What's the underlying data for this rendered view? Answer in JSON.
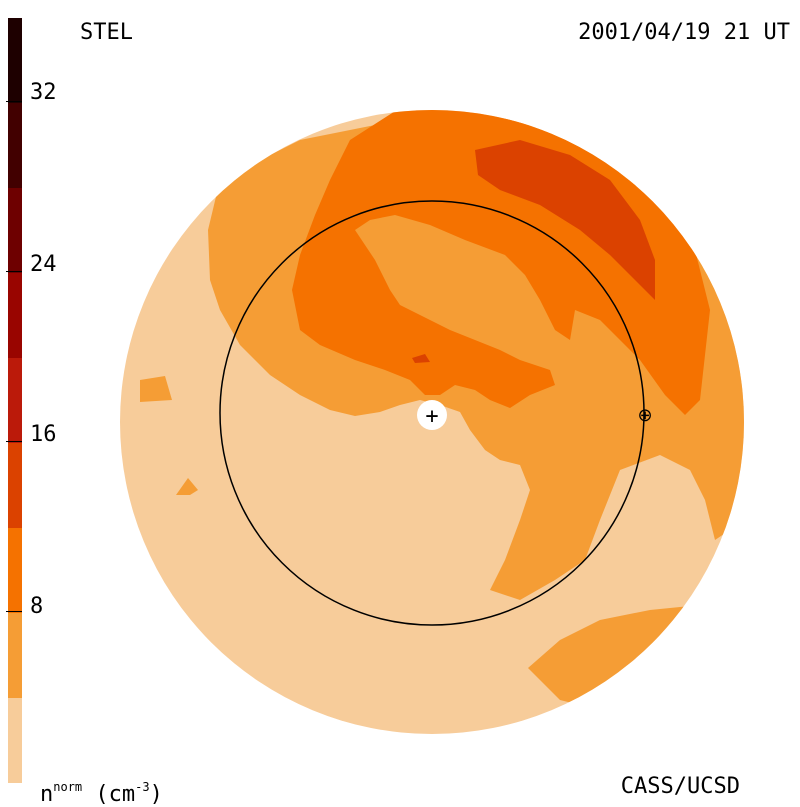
{
  "header": {
    "station": "STEL",
    "timestamp": "2001/04/19 21 UT"
  },
  "footer": {
    "credit": "CASS/UCSD",
    "unit_base": "n",
    "unit_super": "norm",
    "unit_rest": "(cm",
    "unit_exp": "-3",
    "unit_close": ")"
  },
  "colorbar": {
    "ticks": [
      "32",
      "24",
      "16",
      "8"
    ],
    "range": [
      0,
      36
    ],
    "levels": [
      {
        "from": 0,
        "to": 4,
        "color": "#f7cc9a"
      },
      {
        "from": 4,
        "to": 8,
        "color": "#f59d35"
      },
      {
        "from": 8,
        "to": 12,
        "color": "#f57200"
      },
      {
        "from": 12,
        "to": 16,
        "color": "#db4200"
      },
      {
        "from": 16,
        "to": 20,
        "color": "#bb1a0a"
      },
      {
        "from": 20,
        "to": 24,
        "color": "#990500"
      },
      {
        "from": 24,
        "to": 28,
        "color": "#6e0000"
      },
      {
        "from": 28,
        "to": 32,
        "color": "#420000"
      },
      {
        "from": 32,
        "to": 36,
        "color": "#1e0000"
      }
    ]
  },
  "markers": {
    "sun": "+",
    "earth": "⊕"
  }
}
